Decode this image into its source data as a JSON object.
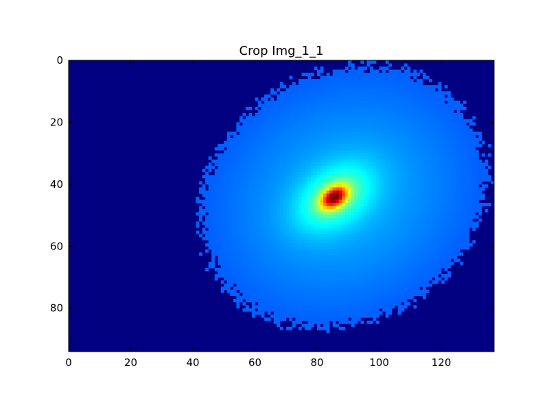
{
  "chart_data": {
    "type": "heatmap",
    "title": "Crop Img_1_1",
    "xlabel": "",
    "ylabel": "",
    "colormap": "jet",
    "xlim": [
      0,
      137
    ],
    "ylim": [
      94,
      0
    ],
    "x_ticks": [
      0,
      20,
      40,
      60,
      80,
      100,
      120
    ],
    "y_ticks": [
      0,
      20,
      40,
      60,
      80
    ],
    "grid": false,
    "image_shape": [
      94,
      137
    ],
    "background_value": 0.0,
    "peak": {
      "x": 85.5,
      "y": 44.2,
      "value": 1.0
    },
    "core_blob": {
      "center_x": 85.5,
      "center_y": 44.2,
      "semi_axis_major": 5.5,
      "semi_axis_minor": 3.6,
      "rotation_deg": -35
    },
    "halo_blob": {
      "center_x": 88.5,
      "center_y": 44.0,
      "semi_axis_major": 45,
      "semi_axis_minor": 38,
      "rotation_deg": -30,
      "edge_value": 0.22
    }
  },
  "colors": {
    "background": "#ffffff",
    "axes_edge": "#000000",
    "colormap_low": "#00007f",
    "colormap_high": "#7f0000"
  }
}
